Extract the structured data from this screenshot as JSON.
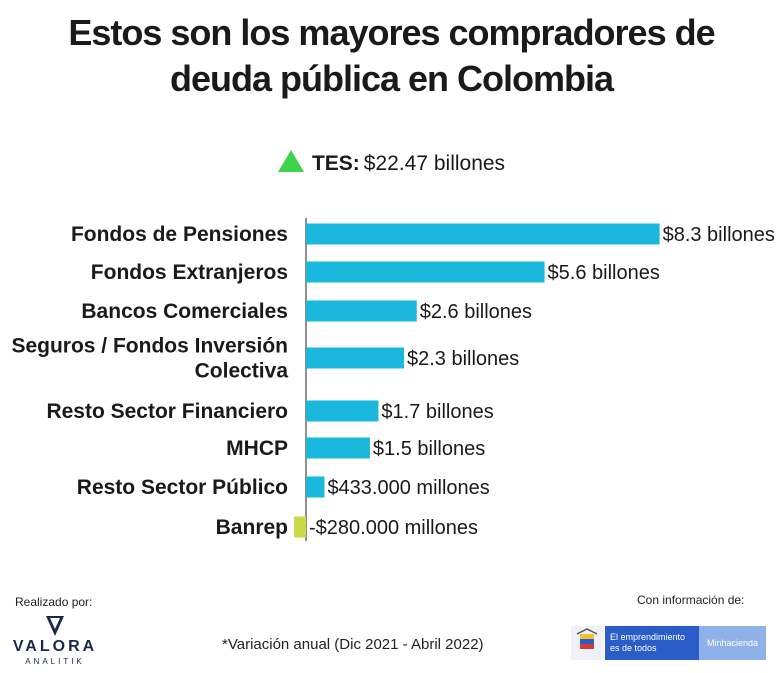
{
  "title_line1": "Estos son los mayores compradores de",
  "title_line2": "deuda pública en Colombia",
  "tes": {
    "label": "TES:",
    "value": "$22.47 billones",
    "indicator_color": "#3fd34a"
  },
  "chart_data": {
    "type": "bar",
    "orientation": "horizontal",
    "categories": [
      [
        "Fondos de Pensiones"
      ],
      [
        "Fondos Extranjeros"
      ],
      [
        "Bancos Comerciales"
      ],
      [
        "Seguros / Fondos Inversión",
        "Colectiva"
      ],
      [
        "Resto Sector Financiero"
      ],
      [
        "MHCP"
      ],
      [
        "Resto Sector Público"
      ],
      [
        "Banrep"
      ]
    ],
    "values": [
      8.3,
      5.6,
      2.6,
      2.3,
      1.7,
      1.5,
      0.433,
      -0.28
    ],
    "value_labels": [
      "$8.3 billones",
      "$5.6 billones",
      "$2.6 billones",
      "$2.3 billones",
      "$1.7 billones",
      "$1.5 billones",
      "$433.000 millones",
      "-$280.000 millones"
    ],
    "bar_color": "#1ab8dc",
    "negative_bar_color": "#c9d94a",
    "axis_color": "#6b6b6b",
    "xlim": [
      -0.28,
      8.3
    ]
  },
  "footer": {
    "made_by": "Realizado por:",
    "brand_name": "VALORA",
    "brand_sub": "ANALITIK",
    "note": "*Variación anual (Dic 2021 - Abril 2022)",
    "source_label": "Con información de:",
    "source_slogan_line1": "El emprendimiento",
    "source_slogan_line2": "es de todos",
    "source_name": "Minhacienda"
  }
}
